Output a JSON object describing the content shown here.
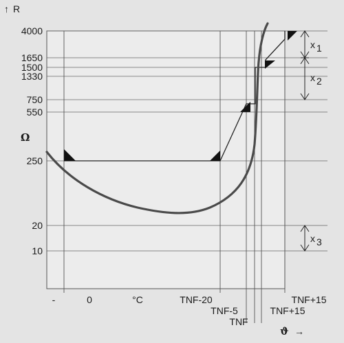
{
  "chart_data": {
    "type": "line",
    "title": "",
    "ylabel": "R",
    "y_unit": "Ω",
    "xlabel": "ϑ",
    "y_scale": "log",
    "y_ticks": [
      4000,
      1650,
      1500,
      1330,
      750,
      550,
      250,
      20,
      10
    ],
    "x_ticks": [
      {
        "id": "minus",
        "label": "-"
      },
      {
        "id": "zero",
        "label": "0"
      },
      {
        "id": "degc",
        "label": "°C"
      },
      {
        "id": "tnfm20",
        "label": "TNF-20"
      },
      {
        "id": "tnfm5",
        "label": "TNF-5"
      },
      {
        "id": "tnf",
        "label": "TNF"
      },
      {
        "id": "tnfp15a",
        "label": "TNF+15"
      },
      {
        "id": "tnfp15b",
        "label": "TNF+15"
      }
    ],
    "series": [
      {
        "points": [
          {
            "x": "-20 °C",
            "y": 250
          },
          {
            "x": "0 °C",
            "y": 100
          },
          {
            "x": "TNF-20",
            "y": 50
          },
          {
            "x": "TNF-5",
            "y": 150
          },
          {
            "x": "TNF",
            "y": 250
          },
          {
            "x": "TNF+15",
            "y": 4000
          }
        ]
      }
    ],
    "limit_line": {
      "points": [
        {
          "x": "-",
          "y": 250
        },
        {
          "x": "TNF-20",
          "y": 250
        },
        {
          "x": "TNF-5",
          "y": 550
        },
        {
          "x": "TNF",
          "y": 1500
        },
        {
          "x": "TNF+15",
          "y": 4000
        }
      ]
    },
    "tolerances": [
      {
        "label": "x",
        "sub": "1",
        "from": 4000,
        "to": 1650
      },
      {
        "label": "x",
        "sub": "2",
        "from": 1650,
        "to": 750
      },
      {
        "label": "x",
        "sub": "3",
        "from": 20,
        "to": 10
      }
    ],
    "grid": true
  }
}
